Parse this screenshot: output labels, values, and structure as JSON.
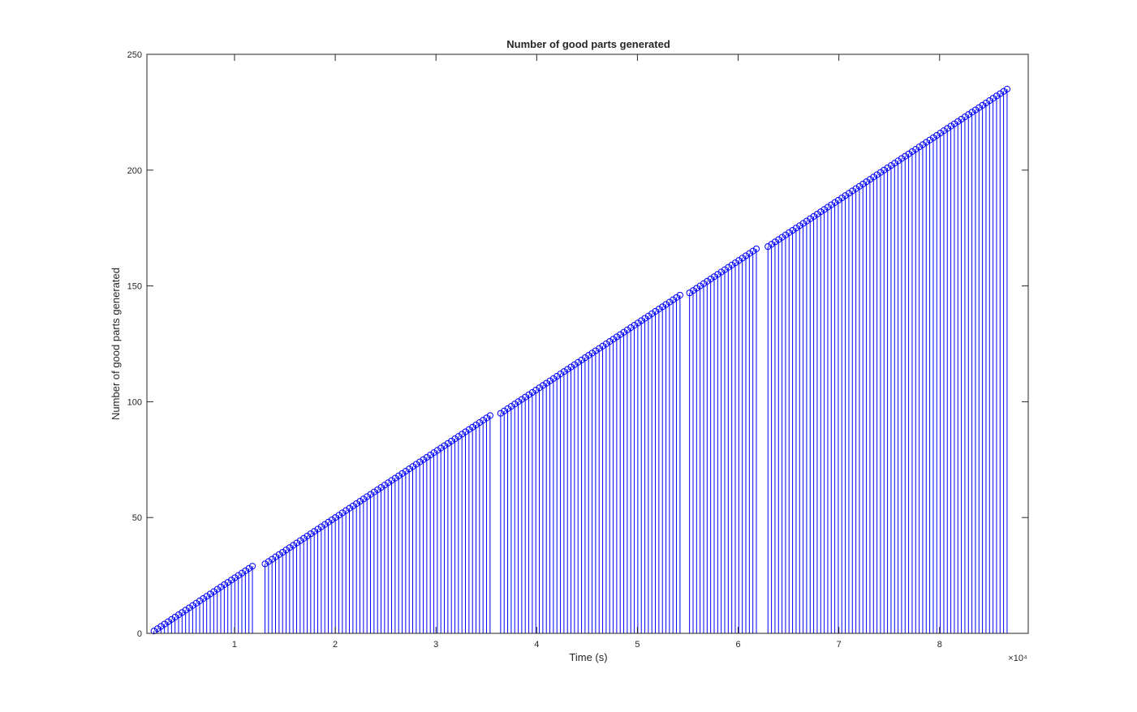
{
  "chart_data": {
    "type": "stem",
    "title": "Number of good parts generated",
    "xlabel": "Time (s)",
    "ylabel": "Number of good parts generated",
    "x_exponent_label": "×10⁴",
    "x_scale_factor": 10000,
    "xlim": [
      1300,
      88800
    ],
    "ylim": [
      0,
      250
    ],
    "x_tick_labels": [
      "1",
      "2",
      "3",
      "4",
      "5",
      "6",
      "7",
      "8"
    ],
    "x_ticks": [
      10000,
      20000,
      30000,
      40000,
      50000,
      60000,
      70000,
      80000
    ],
    "y_ticks": [
      0,
      50,
      100,
      150,
      200,
      250
    ],
    "y_tick_labels": [
      "0",
      "50",
      "100",
      "150",
      "200",
      "250"
    ],
    "grid": false,
    "marker": "circle",
    "color": "#0000ff",
    "series": [
      {
        "values_description_free": true,
        "first_point": [
          2000,
          1
        ],
        "last_point": [
          86700,
          235
        ],
        "count": 235,
        "gaps_after_index": [
          29,
          94,
          146,
          166
        ],
        "gap_sizes_s": [
          900,
          700,
          600,
          800
        ]
      }
    ]
  }
}
